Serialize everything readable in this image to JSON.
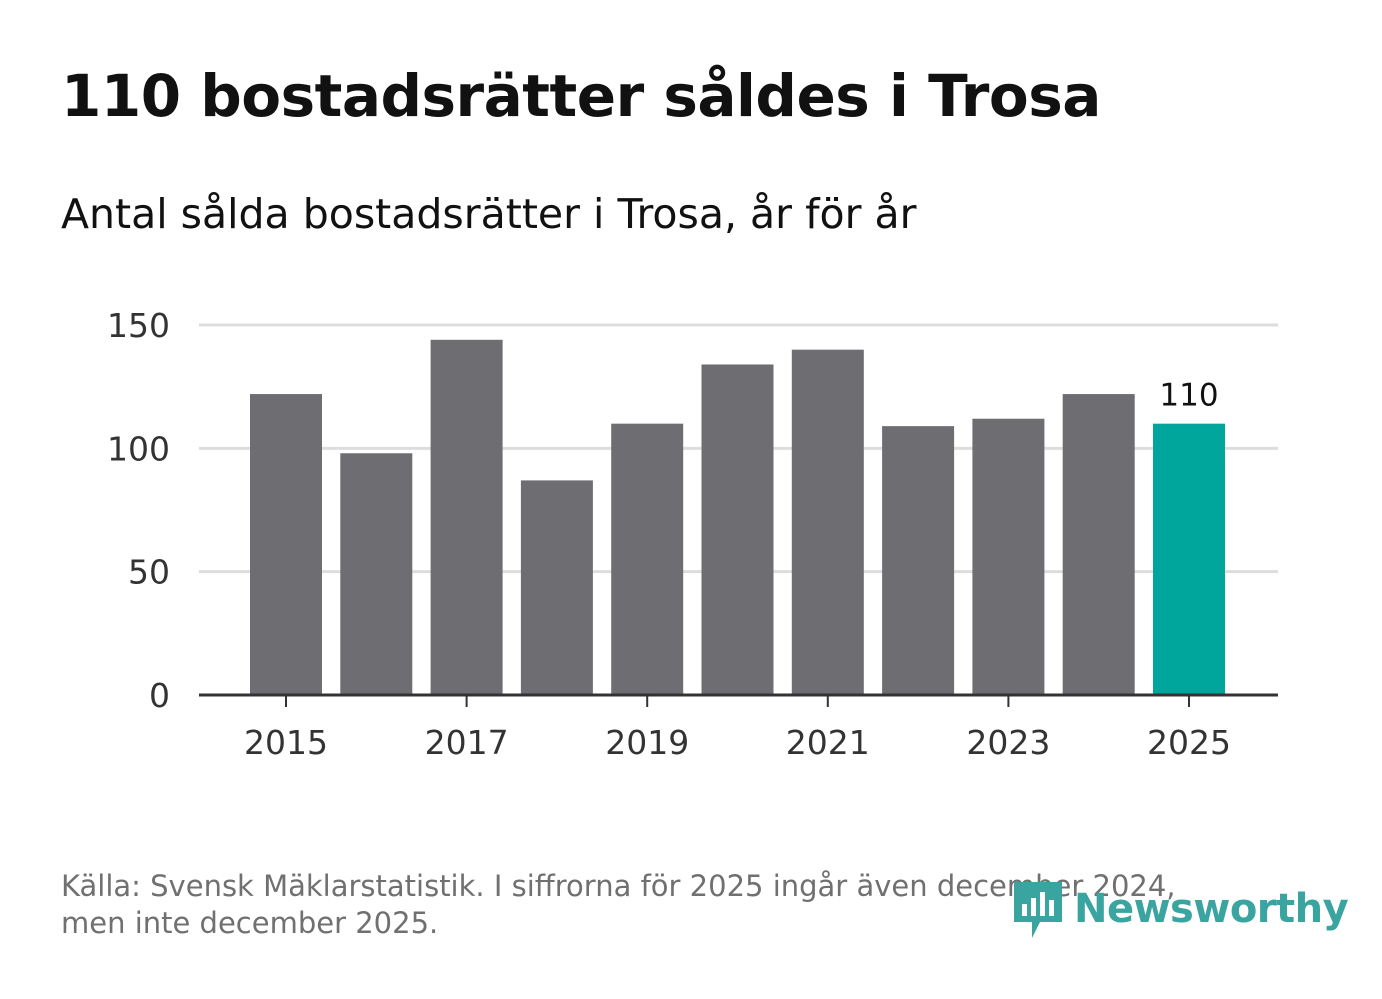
{
  "title": "110 bostadsrätter såldes i Trosa",
  "subtitle": "Antal sålda bostadsrätter i Trosa, år för år",
  "footer": {
    "source_line1": "Källa: Svensk Mäklarstatistik. I siffrorna för 2025 ingår även december 2024,",
    "source_line2": "men inte december 2025."
  },
  "brand": {
    "name": "Newsworthy",
    "icon": "bar-chart-speech-bubble-icon",
    "color": "#3aa4a0"
  },
  "colors": {
    "bar": "#6e6d72",
    "highlight": "#00a59b",
    "grid": "#dddddd",
    "axis": "#333333",
    "tick_text": "#333333"
  },
  "chart_data": {
    "type": "bar",
    "title": "110 bostadsrätter såldes i Trosa",
    "subtitle": "Antal sålda bostadsrätter i Trosa, år för år",
    "xlabel": "",
    "ylabel": "",
    "categories": [
      "2015",
      "2016",
      "2017",
      "2018",
      "2019",
      "2020",
      "2021",
      "2022",
      "2023",
      "2024",
      "2025"
    ],
    "values": [
      122,
      98,
      144,
      87,
      110,
      134,
      140,
      109,
      112,
      122,
      110
    ],
    "x_tick_labels": [
      "2015",
      "2017",
      "2019",
      "2021",
      "2023",
      "2025"
    ],
    "y_ticks": [
      0,
      50,
      100,
      150
    ],
    "ylim": [
      0,
      150
    ],
    "grid": true,
    "highlight_category": "2025",
    "data_labels": [
      {
        "category": "2025",
        "text": "110"
      }
    ]
  }
}
